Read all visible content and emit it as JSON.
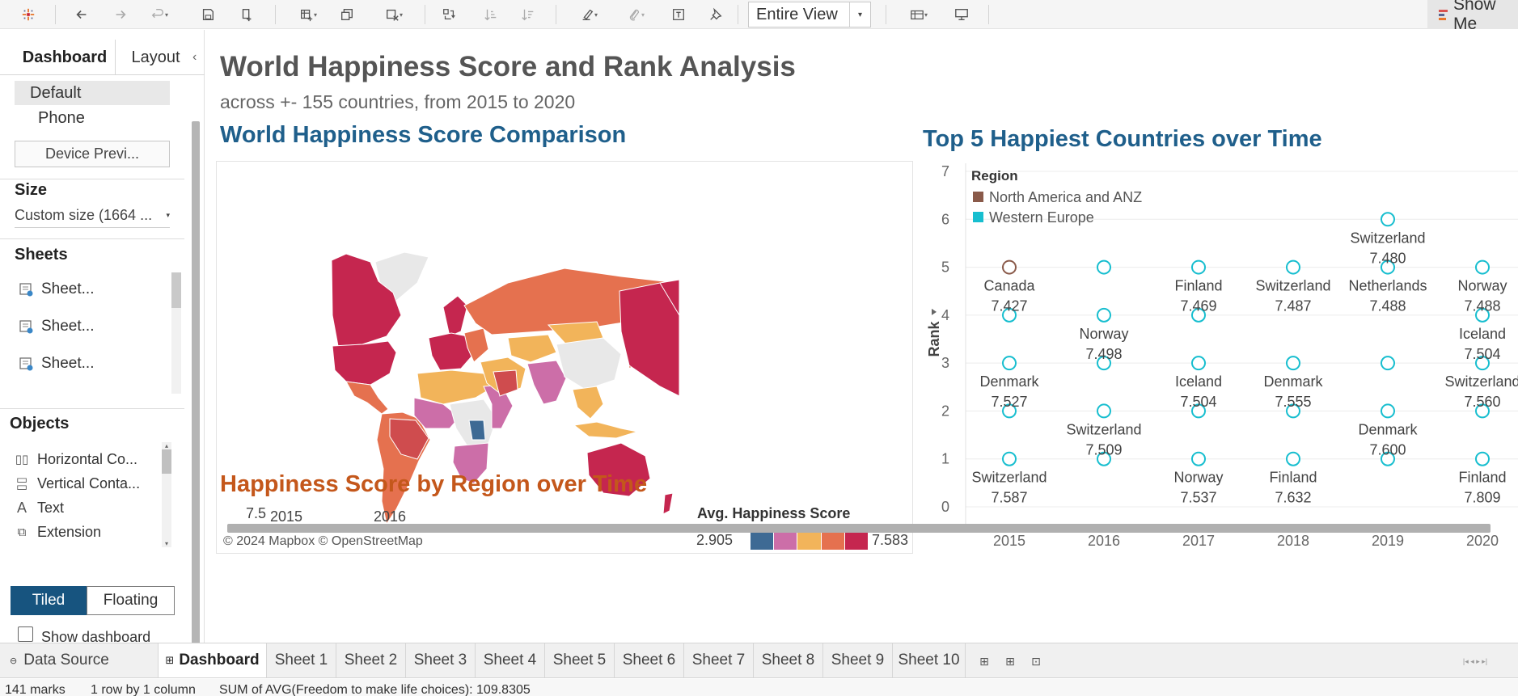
{
  "toolbar": {
    "fit_label": "Entire View",
    "show_me_label": "Show Me"
  },
  "left_panel": {
    "tabs": [
      "Dashboard",
      "Layout"
    ],
    "devices": [
      "Default",
      "Phone"
    ],
    "device_preview_label": "Device Previ...",
    "size": {
      "heading": "Size",
      "value": "Custom size (1664 ..."
    },
    "sheets": {
      "heading": "Sheets",
      "items": [
        "Sheet...",
        "Sheet...",
        "Sheet..."
      ]
    },
    "objects": {
      "heading": "Objects",
      "items": [
        "Horizontal Co...",
        "Vertical Conta...",
        "Text",
        "Extension"
      ]
    },
    "layout_toggle": {
      "tiled": "Tiled",
      "floating": "Floating"
    },
    "show_title_label": "Show dashboard title"
  },
  "dashboard": {
    "title": "World Happiness Score and Rank Analysis",
    "subtitle": "across +- 155 countries, from 2015 to 2020",
    "map": {
      "title": "World Happiness Score Comparison",
      "credit": "© 2024 Mapbox © OpenStreetMap",
      "legend": {
        "title": "Avg. Happiness Score",
        "min": "2.905",
        "max": "7.583",
        "colors": [
          "#3e6a94",
          "#cc6ea8",
          "#f2b45a",
          "#e5714f",
          "#c5264f"
        ]
      }
    },
    "region_title": "Happiness Score by Region over Time",
    "region_peek": {
      "y_tick": "7.5",
      "years": [
        "2015",
        "2016"
      ]
    }
  },
  "chart_data": {
    "type": "scatter",
    "title": "Top 5 Happiest Countries over Time",
    "xlabel": "",
    "ylabel": "Rank",
    "x_categories": [
      "2015",
      "2016",
      "2017",
      "2018",
      "2019",
      "2020"
    ],
    "ylim": [
      0,
      7
    ],
    "y_ticks": [
      0,
      1,
      2,
      3,
      4,
      5,
      6,
      7
    ],
    "grid": true,
    "legend": {
      "title": "Region",
      "placement": "top-left",
      "items": [
        {
          "name": "North America and ANZ",
          "color": "#8a5a4a"
        },
        {
          "name": "Western Europe",
          "color": "#17becf"
        }
      ]
    },
    "points": [
      {
        "year": "2015",
        "rank": 1,
        "country": "Switzerland",
        "score": "7.587",
        "region": "Western Europe"
      },
      {
        "year": "2015",
        "rank": 2,
        "country": "",
        "score": "",
        "region": "Western Europe"
      },
      {
        "year": "2015",
        "rank": 3,
        "country": "Denmark",
        "score": "7.527",
        "region": "Western Europe"
      },
      {
        "year": "2015",
        "rank": 4,
        "country": "",
        "score": "",
        "region": "Western Europe"
      },
      {
        "year": "2015",
        "rank": 5,
        "country": "Canada",
        "score": "7.427",
        "region": "North America and ANZ"
      },
      {
        "year": "2016",
        "rank": 1,
        "country": "",
        "score": "",
        "region": "Western Europe"
      },
      {
        "year": "2016",
        "rank": 2,
        "country": "Switzerland",
        "score": "7.509",
        "region": "Western Europe"
      },
      {
        "year": "2016",
        "rank": 3,
        "country": "",
        "score": "",
        "region": "Western Europe"
      },
      {
        "year": "2016",
        "rank": 4,
        "country": "Norway",
        "score": "7.498",
        "region": "Western Europe"
      },
      {
        "year": "2016",
        "rank": 5,
        "country": "",
        "score": "",
        "region": "Western Europe"
      },
      {
        "year": "2017",
        "rank": 1,
        "country": "Norway",
        "score": "7.537",
        "region": "Western Europe"
      },
      {
        "year": "2017",
        "rank": 2,
        "country": "",
        "score": "",
        "region": "Western Europe"
      },
      {
        "year": "2017",
        "rank": 3,
        "country": "Iceland",
        "score": "7.504",
        "region": "Western Europe"
      },
      {
        "year": "2017",
        "rank": 4,
        "country": "",
        "score": "",
        "region": "Western Europe"
      },
      {
        "year": "2017",
        "rank": 5,
        "country": "Finland",
        "score": "7.469",
        "region": "Western Europe"
      },
      {
        "year": "2018",
        "rank": 1,
        "country": "Finland",
        "score": "7.632",
        "region": "Western Europe"
      },
      {
        "year": "2018",
        "rank": 2,
        "country": "",
        "score": "",
        "region": "Western Europe"
      },
      {
        "year": "2018",
        "rank": 3,
        "country": "Denmark",
        "score": "7.555",
        "region": "Western Europe"
      },
      {
        "year": "2018",
        "rank": 5,
        "country": "Switzerland",
        "score": "7.487",
        "region": "Western Europe"
      },
      {
        "year": "2019",
        "rank": 1,
        "country": "",
        "score": "",
        "region": "Western Europe"
      },
      {
        "year": "2019",
        "rank": 2,
        "country": "Denmark",
        "score": "7.600",
        "region": "Western Europe"
      },
      {
        "year": "2019",
        "rank": 3,
        "country": "",
        "score": "",
        "region": "Western Europe"
      },
      {
        "year": "2019",
        "rank": 5,
        "country": "Netherlands",
        "score": "7.488",
        "region": "Western Europe"
      },
      {
        "year": "2019",
        "rank": 6,
        "country": "Switzerland",
        "score": "7.480",
        "region": "Western Europe"
      },
      {
        "year": "2020",
        "rank": 1,
        "country": "Finland",
        "score": "7.809",
        "region": "Western Europe"
      },
      {
        "year": "2020",
        "rank": 2,
        "country": "",
        "score": "",
        "region": "Western Europe"
      },
      {
        "year": "2020",
        "rank": 3,
        "country": "Switzerland",
        "score": "7.560",
        "region": "Western Europe"
      },
      {
        "year": "2020",
        "rank": 4,
        "country": "Iceland",
        "score": "7.504",
        "region": "Western Europe"
      },
      {
        "year": "2020",
        "rank": 5,
        "country": "Norway",
        "score": "7.488",
        "region": "Western Europe"
      }
    ]
  },
  "sheet_tabs": {
    "data_source": "Data Source",
    "tabs": [
      "Dashboard",
      "Sheet 1",
      "Sheet 2",
      "Sheet 3",
      "Sheet 4",
      "Sheet 5",
      "Sheet 6",
      "Sheet 7",
      "Sheet 8",
      "Sheet 9",
      "Sheet 10"
    ],
    "active": "Dashboard"
  },
  "status_bar": {
    "marks": "141 marks",
    "grid": "1 row by 1 column",
    "summary": "SUM of AVG(Freedom to make life choices): 109.8305"
  }
}
